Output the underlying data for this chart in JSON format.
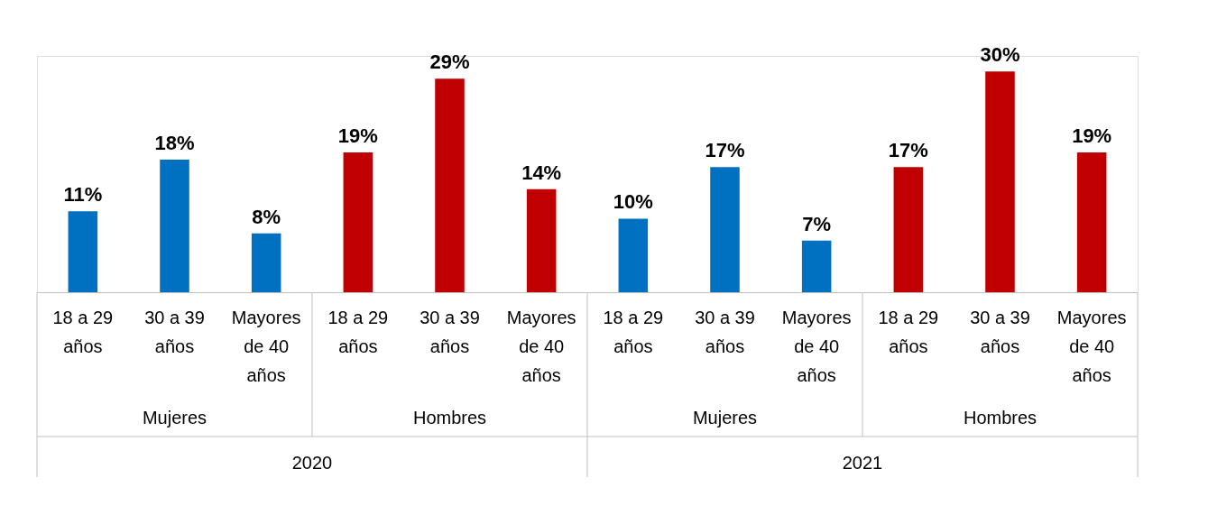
{
  "chart_data": {
    "type": "bar",
    "categories": [
      "18 a 29 años",
      "30 a 39 años",
      "Mayores de 40 años",
      "18 a 29 años",
      "30 a 39 años",
      "Mayores de 40 años",
      "18 a 29 años",
      "30 a 39 años",
      "Mayores de 40 años",
      "18 a 29 años",
      "30 a 39 años",
      "Mayores de 40 años"
    ],
    "values": [
      11,
      18,
      8,
      19,
      29,
      14,
      10,
      17,
      7,
      17,
      30,
      19
    ],
    "value_labels": [
      "11%",
      "18%",
      "8%",
      "19%",
      "29%",
      "14%",
      "10%",
      "17%",
      "7%",
      "17%",
      "30%",
      "19%"
    ],
    "colors": [
      "#0070c0",
      "#0070c0",
      "#0070c0",
      "#c00000",
      "#c00000",
      "#c00000",
      "#0070c0",
      "#0070c0",
      "#0070c0",
      "#c00000",
      "#c00000",
      "#c00000"
    ],
    "annotations": [
      "Mujeres",
      "Hombres",
      "Mujeres",
      "Hombres",
      "2020",
      "2021"
    ],
    "grid": false
  }
}
